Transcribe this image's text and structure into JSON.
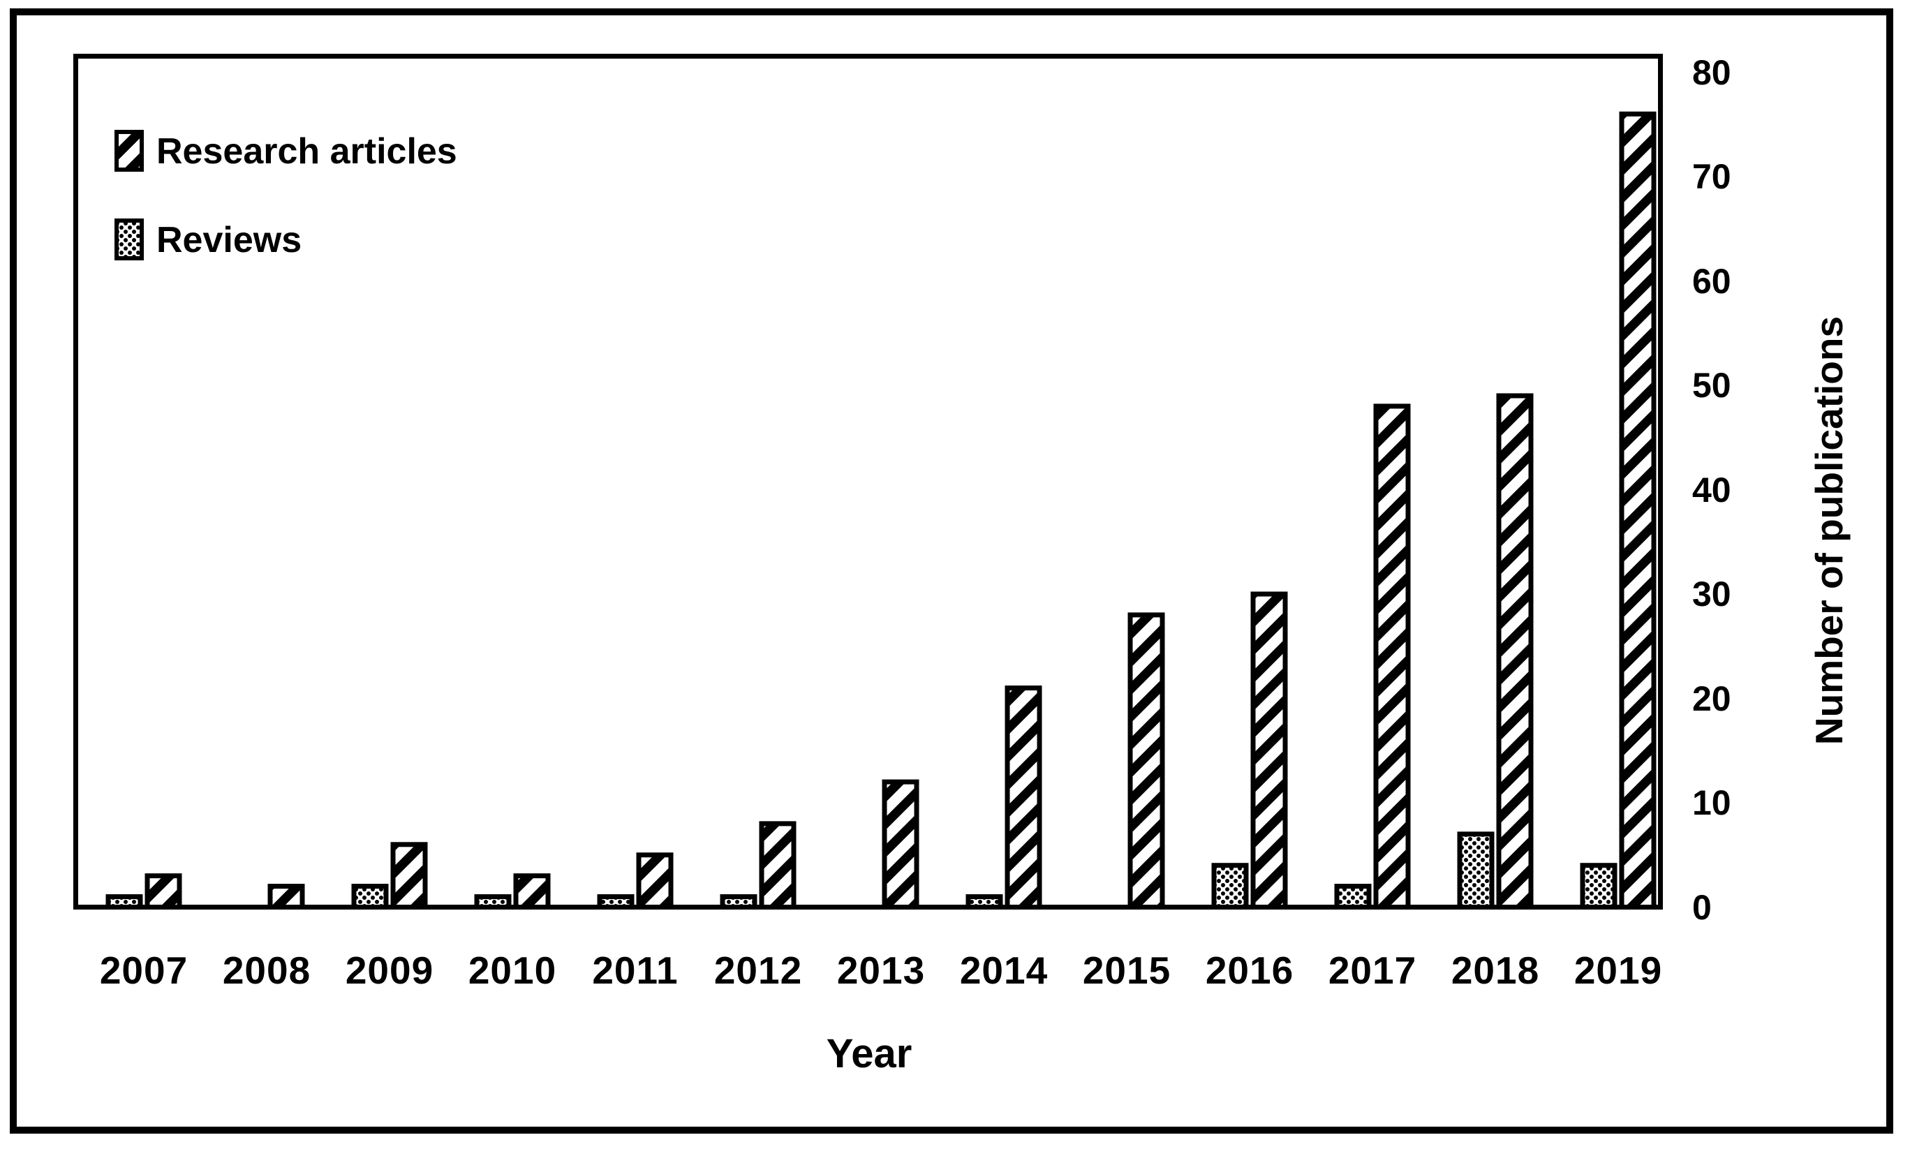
{
  "chart_data": {
    "type": "bar",
    "title": "",
    "categories": [
      "2007",
      "2008",
      "2009",
      "2010",
      "2011",
      "2012",
      "2013",
      "2014",
      "2015",
      "2016",
      "2017",
      "2018",
      "2019"
    ],
    "series": [
      {
        "name": "Research articles",
        "pattern": "diagonal-hatch",
        "group_slot": 1,
        "values": [
          3,
          2,
          6,
          3,
          5,
          8,
          12,
          21,
          28,
          30,
          48,
          49,
          76
        ]
      },
      {
        "name": "Reviews",
        "pattern": "dots",
        "group_slot": 0,
        "values": [
          1,
          0,
          2,
          1,
          1,
          1,
          0,
          1,
          0,
          4,
          2,
          7,
          4
        ]
      }
    ],
    "xlabel": "Year",
    "ylabel": "Number of publications",
    "ylim": [
      0,
      80
    ],
    "yticks": [
      0,
      10,
      20,
      30,
      40,
      50,
      60,
      70,
      80
    ],
    "y_axis_side": "right",
    "legend_position": "top-left",
    "grid": false,
    "bar_outline_color": "#000000",
    "bar_fill_background": "#ffffff",
    "text_color": "#000000"
  }
}
